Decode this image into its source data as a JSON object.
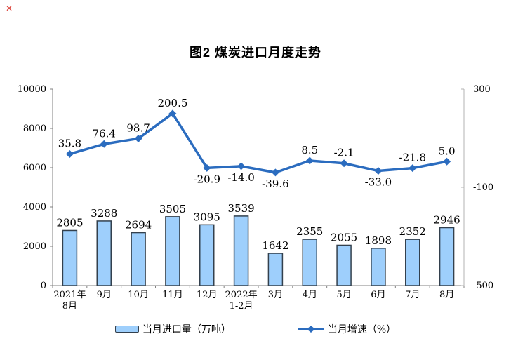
{
  "page": {
    "title": "图2 煤炭进口月度走势",
    "broken_image_icon": "✕"
  },
  "legend": {
    "bar_label": "当月进口量（万吨）",
    "line_label": "当月增速（%）"
  },
  "colors": {
    "bar_fill": "#9ECFFC",
    "bar_border": "#33404D",
    "line": "#2B6CBF",
    "axis": "#808080",
    "axis_light": "#B3B3B3",
    "text": "#000000"
  },
  "chart_data": {
    "type": "combo-bar-line",
    "title": "图2 煤炭进口月度走势",
    "categories": [
      [
        "2021年",
        "8月"
      ],
      [
        "9月"
      ],
      [
        "10月"
      ],
      [
        "11月"
      ],
      [
        "12月"
      ],
      [
        "2022年",
        "1-2月"
      ],
      [
        "3月"
      ],
      [
        "4月"
      ],
      [
        "5月"
      ],
      [
        "6月"
      ],
      [
        "7月"
      ],
      [
        "8月"
      ]
    ],
    "series": [
      {
        "name": "当月进口量（万吨）",
        "type": "bar",
        "axis": "left",
        "values": [
          2805,
          3288,
          2694,
          3505,
          3095,
          3539,
          1642,
          2355,
          2055,
          1898,
          2352,
          2946
        ],
        "labels": [
          "2805",
          "3288",
          "2694",
          "3505",
          "3095",
          "3539",
          "1642",
          "2355",
          "2055",
          "1898",
          "2352",
          "2946"
        ]
      },
      {
        "name": "当月增速（%）",
        "type": "line",
        "axis": "right",
        "values": [
          35.8,
          76.4,
          98.7,
          200.5,
          -20.9,
          -14.0,
          -39.6,
          8.5,
          -2.1,
          -33.0,
          -21.8,
          5.0
        ],
        "labels": [
          "35.8",
          "76.4",
          "98.7",
          "200.5",
          "-20.9",
          "-14.0",
          "-39.6",
          "8.5",
          "-2.1",
          "-33.0",
          "-21.8",
          "5.0"
        ],
        "label_below": [
          false,
          false,
          false,
          false,
          true,
          true,
          true,
          false,
          false,
          true,
          false,
          false
        ]
      }
    ],
    "left_axis": {
      "min": 0,
      "max": 10000,
      "ticks": [
        0,
        2000,
        4000,
        6000,
        8000,
        10000
      ]
    },
    "right_axis": {
      "min": -500,
      "max": 300,
      "ticks": [
        300,
        -100,
        -500
      ]
    },
    "grid": false,
    "legend_position": "bottom"
  }
}
